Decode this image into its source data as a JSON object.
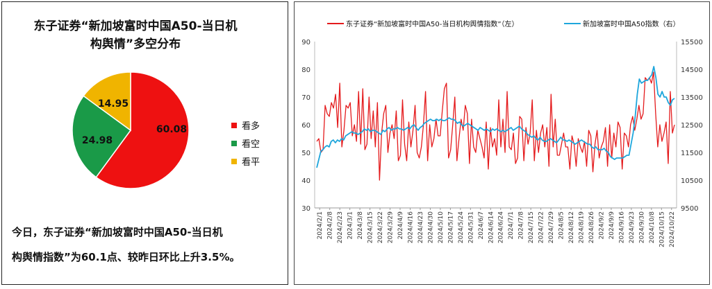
{
  "pie": {
    "title_line1": "东子证券“新加坡富时中国A50-当日机",
    "title_line2": "构舆情”多空分布",
    "summary_line1": "今日，东子证券“新加坡富时中国A50-当日机",
    "summary_line2": "构舆情指数”为60.1点、较昨日环比上升3.5%。"
  },
  "line": {
    "legend_left": "东子证券“新加坡富时中国A50-当日机构舆情指数”（左）",
    "legend_right": "新加坡富时中国A50指数（右）"
  },
  "colors": {
    "bullish": "#ee1111",
    "bearish": "#1a9a48",
    "neutral": "#f0b400",
    "sentiment_line": "#e41a1c",
    "index_line": "#1ea6dc"
  },
  "chart_data": [
    {
      "type": "pie",
      "title": "东子证券“新加坡富时中国A50-当日机构舆情”多空分布",
      "slices": [
        {
          "label": "看多",
          "value": 60.08
        },
        {
          "label": "看空",
          "value": 24.98
        },
        {
          "label": "看平",
          "value": 14.95
        }
      ],
      "legend_position": "right"
    },
    {
      "type": "line",
      "x_tick_labels": [
        "2024/2/1",
        "2024/2/8",
        "2024/2/23",
        "2024/3/1",
        "2024/3/8",
        "2024/3/15",
        "2024/3/22",
        "2024/3/29",
        "2024/4/9",
        "2024/4/16",
        "2024/4/23",
        "2024/4/30",
        "2024/5/10",
        "2024/5/17",
        "2024/5/24",
        "2024/5/31",
        "2024/6/7",
        "2024/6/14",
        "2024/6/24",
        "2024/7/1",
        "2024/7/8",
        "2024/7/15",
        "2024/7/22",
        "2024/7/29",
        "2024/8/5",
        "2024/8/12",
        "2024/8/19",
        "2024/8/26",
        "2024/9/2",
        "2024/9/9",
        "2024/9/16",
        "2024/9/23",
        "2024/9/30",
        "2024/10/8",
        "2024/10/15",
        "2024/10/22"
      ],
      "y_left": {
        "ticks": [
          30,
          40,
          50,
          60,
          70,
          80,
          90
        ],
        "range": [
          30,
          90
        ]
      },
      "y_right": {
        "ticks": [
          9500,
          10500,
          11500,
          12500,
          13500,
          14500,
          15500
        ],
        "range": [
          9500,
          15500
        ]
      },
      "legend_position": "top",
      "series": [
        {
          "name": "东子证券“新加坡富时中国A50-当日机构舆情指数”（左）",
          "axis": "left",
          "values": [
            54,
            55,
            50,
            51,
            67,
            64,
            63,
            68,
            66,
            71,
            59,
            75,
            52,
            58,
            67,
            66,
            68,
            56,
            60,
            54,
            72,
            53,
            73,
            51,
            53,
            70,
            55,
            65,
            52,
            68,
            40,
            57,
            64,
            67,
            50,
            57,
            60,
            55,
            65,
            47,
            49,
            69,
            53,
            47,
            61,
            52,
            58,
            67,
            50,
            48,
            52,
            60,
            72,
            47,
            60,
            52,
            55,
            62,
            56,
            56,
            65,
            73,
            75,
            48,
            51,
            60,
            70,
            47,
            55,
            62,
            58,
            67,
            64,
            46,
            62,
            52,
            50,
            58,
            55,
            52,
            48,
            61,
            44,
            59,
            52,
            55,
            49,
            69,
            52,
            62,
            50,
            72,
            52,
            51,
            57,
            46,
            48,
            63,
            62,
            47,
            59,
            53,
            57,
            69,
            47,
            58,
            50,
            57,
            60,
            52,
            59,
            45,
            71,
            52,
            62,
            49,
            49,
            53,
            57,
            52,
            52,
            44,
            56,
            53,
            45,
            55,
            52,
            50,
            54,
            45,
            58,
            56,
            43,
            53,
            58,
            48,
            52,
            54,
            59,
            45,
            60,
            48,
            57,
            52,
            61,
            59,
            44,
            57,
            56,
            52,
            60,
            63,
            58,
            62,
            67,
            62,
            64,
            77,
            76,
            77,
            75,
            79,
            64,
            52,
            60,
            54,
            57,
            61,
            46,
            72,
            57,
            60
          ]
        },
        {
          "name": "新加坡富时中国A50指数（右）",
          "axis": "right",
          "values": [
            10950,
            11250,
            11550,
            11600,
            11700,
            11750,
            11700,
            11900,
            11950,
            11850,
            11950,
            11900,
            12000,
            11950,
            12100,
            12150,
            12200,
            12250,
            12200,
            12200,
            12150,
            12200,
            12250,
            12350,
            12300,
            12350,
            12250,
            12300,
            12300,
            12250,
            12200,
            12150,
            12300,
            12250,
            12350,
            12400,
            12300,
            12350,
            12350,
            12400,
            12350,
            12350,
            12300,
            12350,
            12400,
            12350,
            12450,
            12500,
            12400,
            12300,
            12400,
            12450,
            12550,
            12600,
            12650,
            12700,
            12650,
            12650,
            12700,
            12650,
            12700,
            12650,
            12650,
            12700,
            12750,
            12700,
            12700,
            12650,
            12550,
            12600,
            12500,
            12450,
            12500,
            12550,
            12500,
            12450,
            12400,
            12350,
            12300,
            12400,
            12350,
            12300,
            12350,
            12300,
            12250,
            12350,
            12300,
            12350,
            12300,
            12250,
            12300,
            12250,
            12300,
            12350,
            12400,
            12300,
            12350,
            12400,
            12450,
            12350,
            12300,
            12250,
            12150,
            12100,
            12050,
            12100,
            12000,
            11950,
            12050,
            11950,
            11900,
            11900,
            11950,
            12000,
            11950,
            11900,
            11850,
            11950,
            12050,
            11950,
            11950,
            11900,
            11950,
            11900,
            11850,
            11800,
            11850,
            11900,
            11950,
            11900,
            11850,
            11800,
            11800,
            11700,
            11650,
            11700,
            11600,
            11600,
            11600,
            11650,
            11550,
            11500,
            11350,
            11300,
            11250,
            11300,
            11300,
            11300,
            11300,
            11350,
            11400,
            11400,
            11800,
            12200,
            12800,
            13600,
            14150,
            14000,
            14050,
            14100,
            14100,
            14200,
            14300,
            14600,
            14200,
            13600,
            13500,
            13700,
            13500,
            13500,
            13300,
            13200,
            13400,
            13450
          ]
        }
      ]
    }
  ]
}
